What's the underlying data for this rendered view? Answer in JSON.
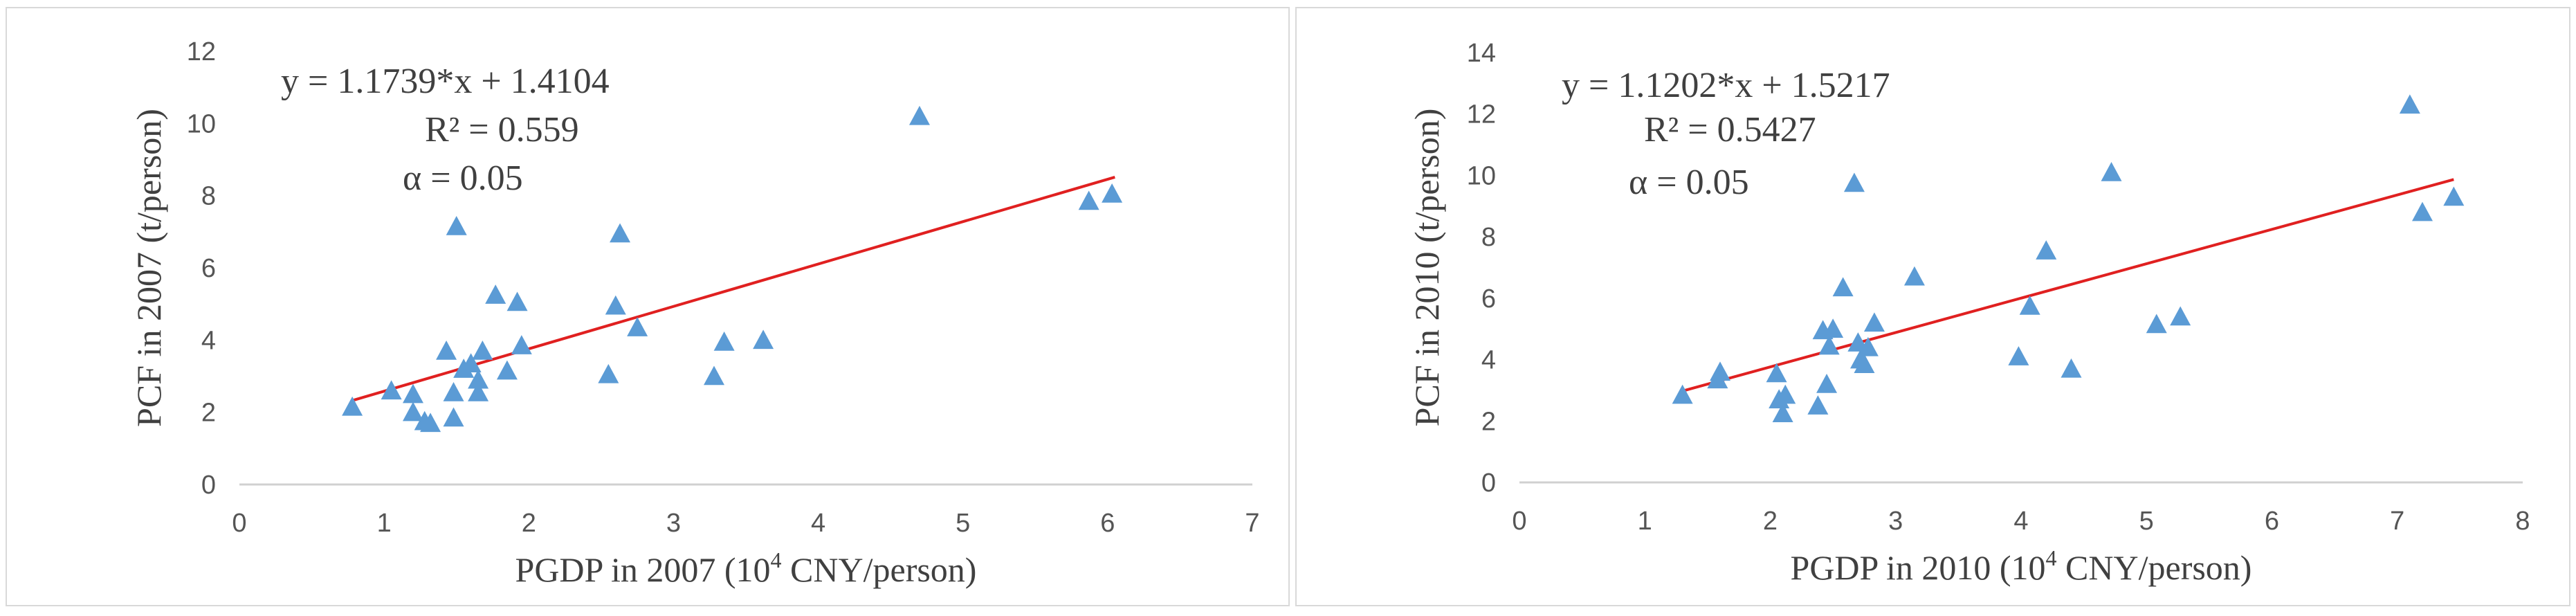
{
  "chart_data": [
    {
      "type": "scatter",
      "title": "",
      "xlabel": "PGDP in 2007 (10<sup>4</sup> CNY/person)",
      "xlabel_parts": [
        "PGDP in 2007 (10",
        "4",
        " CNY/person)"
      ],
      "ylabel": "PCF in 2007 (t/person)",
      "xlim": [
        0,
        7
      ],
      "ylim": [
        0,
        12
      ],
      "xticks": [
        0,
        1,
        2,
        3,
        4,
        5,
        6,
        7
      ],
      "yticks": [
        0,
        2,
        4,
        6,
        8,
        10,
        12
      ],
      "grid": false,
      "marker": "triangle",
      "marker_color": "#5b9bd5",
      "fit_color": "#e02020",
      "fit": {
        "slope": 1.1739,
        "intercept": 1.4104,
        "x_range": [
          0.78,
          6.05
        ]
      },
      "annotations": [
        "y = 1.1739*x + 1.4104",
        "R² = 0.559",
        "α = 0.05"
      ],
      "points": [
        [
          0.78,
          2.15
        ],
        [
          1.05,
          2.6
        ],
        [
          1.2,
          2.5
        ],
        [
          1.2,
          2.0
        ],
        [
          1.28,
          1.75
        ],
        [
          1.32,
          1.7
        ],
        [
          1.43,
          3.7
        ],
        [
          1.48,
          2.55
        ],
        [
          1.48,
          1.85
        ],
        [
          1.5,
          7.15
        ],
        [
          1.55,
          3.2
        ],
        [
          1.6,
          3.35
        ],
        [
          1.65,
          2.9
        ],
        [
          1.65,
          2.55
        ],
        [
          1.68,
          3.7
        ],
        [
          1.77,
          5.25
        ],
        [
          1.85,
          3.15
        ],
        [
          1.92,
          5.05
        ],
        [
          1.95,
          3.85
        ],
        [
          2.55,
          3.05
        ],
        [
          2.6,
          4.95
        ],
        [
          2.63,
          6.95
        ],
        [
          2.75,
          4.35
        ],
        [
          3.28,
          3.0
        ],
        [
          3.35,
          3.95
        ],
        [
          3.62,
          4.0
        ],
        [
          4.7,
          10.2
        ],
        [
          5.87,
          7.85
        ],
        [
          6.03,
          8.05
        ]
      ]
    },
    {
      "type": "scatter",
      "title": "",
      "xlabel": "PGDP in 2010 (10<sup>4</sup> CNY/person)",
      "xlabel_parts": [
        "PGDP in 2010 (10",
        "4",
        " CNY/person)"
      ],
      "ylabel": "PCF in 2010  (t/person)",
      "xlim": [
        0,
        8
      ],
      "ylim": [
        0,
        14
      ],
      "xticks": [
        0,
        1,
        2,
        3,
        4,
        5,
        6,
        7,
        8
      ],
      "yticks": [
        0,
        2,
        4,
        6,
        8,
        10,
        12,
        14
      ],
      "grid": false,
      "marker": "triangle",
      "marker_color": "#5b9bd5",
      "fit_color": "#e02020",
      "fit": {
        "slope": 1.1202,
        "intercept": 1.5217,
        "x_range": [
          1.3,
          7.45
        ]
      },
      "annotations": [
        "y = 1.1202*x + 1.5217",
        "R² = 0.5427",
        "α = 0.05"
      ],
      "points": [
        [
          1.3,
          2.85
        ],
        [
          1.58,
          3.35
        ],
        [
          1.6,
          3.6
        ],
        [
          2.05,
          3.55
        ],
        [
          2.07,
          2.7
        ],
        [
          2.1,
          2.25
        ],
        [
          2.12,
          2.85
        ],
        [
          2.38,
          2.5
        ],
        [
          2.42,
          4.95
        ],
        [
          2.45,
          3.2
        ],
        [
          2.47,
          4.45
        ],
        [
          2.5,
          5.0
        ],
        [
          2.58,
          6.35
        ],
        [
          2.67,
          9.75
        ],
        [
          2.7,
          4.55
        ],
        [
          2.72,
          4.0
        ],
        [
          2.75,
          3.85
        ],
        [
          2.78,
          4.4
        ],
        [
          2.83,
          5.2
        ],
        [
          3.15,
          6.7
        ],
        [
          3.98,
          4.1
        ],
        [
          4.07,
          5.75
        ],
        [
          4.2,
          7.55
        ],
        [
          4.4,
          3.7
        ],
        [
          4.72,
          10.1
        ],
        [
          5.08,
          5.15
        ],
        [
          5.27,
          5.4
        ],
        [
          7.1,
          12.3
        ],
        [
          7.2,
          8.8
        ],
        [
          7.45,
          9.3
        ]
      ]
    }
  ]
}
